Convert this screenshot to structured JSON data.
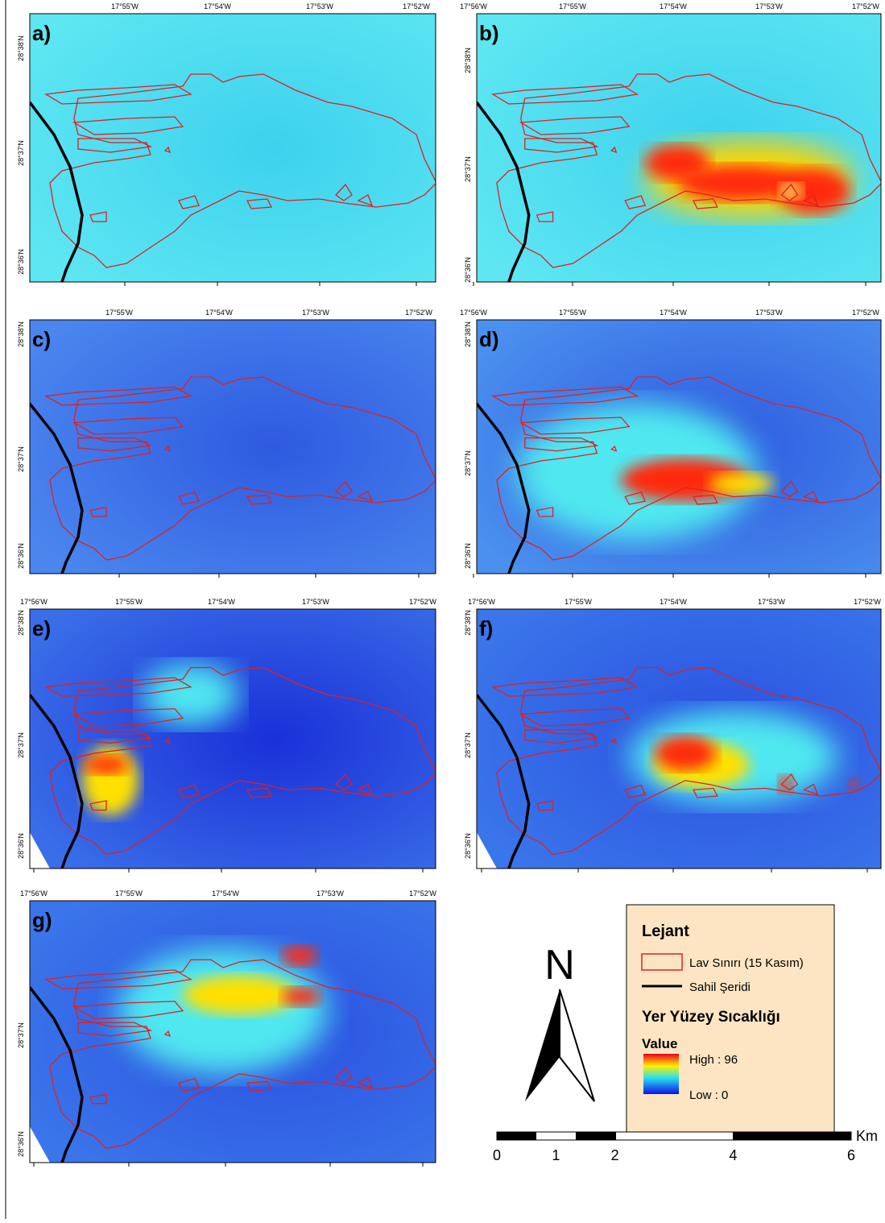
{
  "panels": [
    {
      "label": "a)",
      "lon_labels": [
        "17°55'W",
        "17°54'W",
        "17°53'W",
        "17°52'W"
      ],
      "lat_labels": [
        "28°38'N",
        "28°37'N",
        "28°36'N"
      ]
    },
    {
      "label": "b)",
      "lon_labels": [
        "17°56'W",
        "17°55'W",
        "17°54'W",
        "17°53'W",
        "17°52'W"
      ],
      "lat_labels": [
        "28°38'N",
        "28°37'N",
        "28°36'N"
      ]
    },
    {
      "label": "c)",
      "lon_labels": [
        "17°55'W",
        "17°54'W",
        "17°53'W",
        "17°52'W"
      ],
      "lat_labels": [
        "28°38'N",
        "28°37'N",
        "28°36'N"
      ]
    },
    {
      "label": "d)",
      "lon_labels": [
        "17°56'W",
        "17°55'W",
        "17°54'W",
        "17°53'W",
        "17°52'W"
      ],
      "lat_labels": [
        "28°38'N",
        "28°37'N",
        "28°36'N"
      ]
    },
    {
      "label": "e)",
      "lon_labels": [
        "17°56'W",
        "17°55'W",
        "17°54'W",
        "17°53'W",
        "17°52'W"
      ],
      "lat_labels": [
        "28°38'N",
        "28°37'N",
        "28°36'N"
      ]
    },
    {
      "label": "f)",
      "lon_labels": [
        "17°56'W",
        "17°55'W",
        "17°54'W",
        "17°53'W",
        "17°52'W"
      ],
      "lat_labels": [
        "28°38'N",
        "28°37'N",
        "28°36'N"
      ]
    },
    {
      "label": "g)",
      "lon_labels": [
        "17°56'W",
        "17°55'W",
        "17°54'W",
        "17°53'W",
        "17°52'W"
      ],
      "lat_labels": [
        "28°37'N",
        "28°36'N"
      ]
    }
  ],
  "north": "N",
  "legend": {
    "title": "Lejant",
    "lava": "Lav Sınırı (15 Kasım)",
    "coast": "Sahil Şeridi",
    "heading": "Yer Yüzey Sıcaklığı",
    "value_title": "Value",
    "high": "High : 96",
    "low": "Low : 0"
  },
  "scale_bar": {
    "ticks": [
      0,
      1,
      2,
      4,
      6
    ],
    "unit": "Km"
  }
}
